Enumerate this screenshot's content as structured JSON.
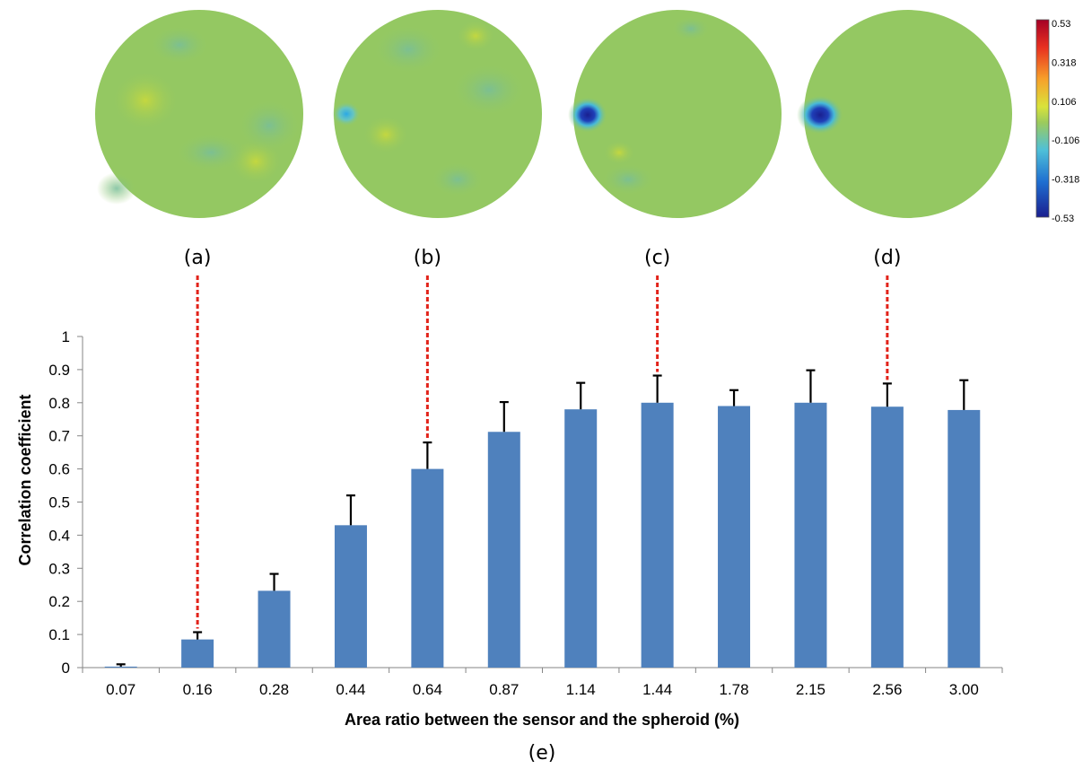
{
  "colorbar": {
    "tick_labels": [
      "0.53",
      "0.318",
      "0.106",
      "-0.106",
      "-0.318",
      "-0.53"
    ],
    "colors": [
      "#a50026",
      "#e83020",
      "#f7a02a",
      "#d9e33a",
      "#9ccb5c",
      "#4fc0d8",
      "#1f6fd1",
      "#1a1f8f"
    ]
  },
  "maps": [
    {
      "label": "(a)",
      "category": "0.16"
    },
    {
      "label": "(b)",
      "category": "0.64"
    },
    {
      "label": "(c)",
      "category": "1.44"
    },
    {
      "label": "(d)",
      "category": "2.56"
    }
  ],
  "map_colors": {
    "background": "#94c862",
    "dark_spot": "#1e2a9e",
    "light_spot": "#3fb8e6",
    "yellow_blob": "#c8d443",
    "cyan_blob": "#7cc08a"
  },
  "chart_data": {
    "type": "bar",
    "categories": [
      "0.07",
      "0.16",
      "0.28",
      "0.44",
      "0.64",
      "0.87",
      "1.14",
      "1.44",
      "1.78",
      "2.15",
      "2.56",
      "3.00"
    ],
    "values": [
      0.003,
      0.085,
      0.232,
      0.43,
      0.6,
      0.712,
      0.78,
      0.8,
      0.79,
      0.8,
      0.788,
      0.778
    ],
    "error_upper": [
      0.007,
      0.022,
      0.051,
      0.09,
      0.08,
      0.09,
      0.08,
      0.082,
      0.048,
      0.098,
      0.07,
      0.09
    ],
    "xlabel": "Area ratio between the sensor and the spheroid (%)",
    "ylabel": "Correlation coefficient",
    "ylim": [
      0,
      1
    ],
    "yticks": [
      "0",
      "0.1",
      "0.2",
      "0.3",
      "0.4",
      "0.5",
      "0.6",
      "0.7",
      "0.8",
      "0.9",
      "1"
    ],
    "panel_label": "(e)",
    "bar_color": "#4f81bd",
    "grid": false
  }
}
